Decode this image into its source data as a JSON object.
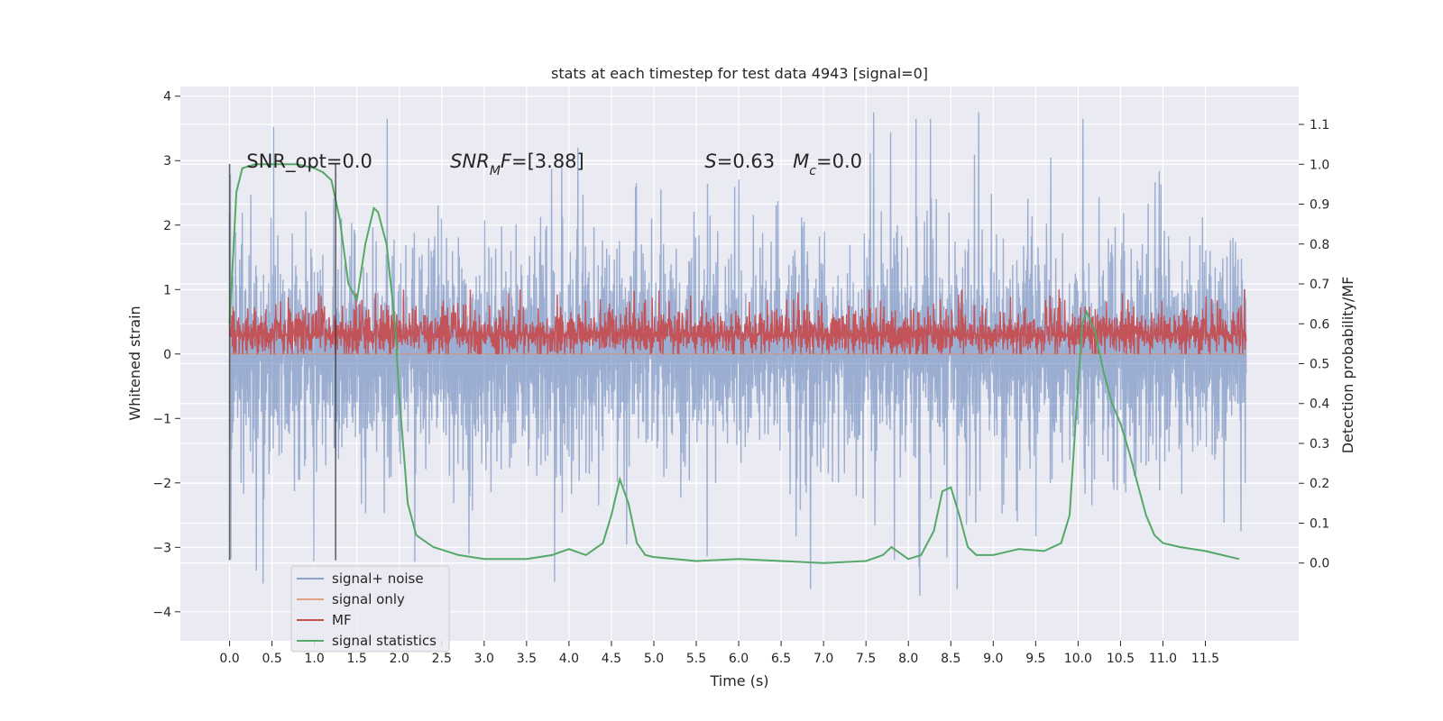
{
  "chart_data": {
    "type": "line",
    "title": "stats at each timestep for test data 4943 [signal=0]",
    "xlabel": "Time (s)",
    "ylabel": "Whitened strain",
    "y2label": "Detection probability/MF",
    "xlim": [
      -0.58,
      12.6
    ],
    "ylim": [
      -4.45,
      4.15
    ],
    "y2lim": [
      -0.195,
      1.195
    ],
    "x_ticks": [
      0.0,
      0.5,
      1.0,
      1.5,
      2.0,
      2.5,
      3.0,
      3.5,
      4.0,
      4.5,
      5.0,
      5.5,
      6.0,
      6.5,
      7.0,
      7.5,
      8.0,
      8.5,
      9.0,
      9.5,
      10.0,
      10.5,
      11.0,
      11.5
    ],
    "x_tick_labels": [
      "0.0",
      "0.5",
      "1.0",
      "1.5",
      "2.0",
      "2.5",
      "3.0",
      "3.5",
      "4.0",
      "4.5",
      "5.0",
      "5.5",
      "6.0",
      "6.5",
      "7.0",
      "7.5",
      "8.0",
      "8.5",
      "9.0",
      "9.5",
      "10.0",
      "10.5",
      "11.0",
      "11.5"
    ],
    "y_ticks": [
      -4,
      -3,
      -2,
      -1,
      0,
      1,
      2,
      3,
      4
    ],
    "y_tick_labels": [
      "−4",
      "−3",
      "−2",
      "−1",
      "0",
      "1",
      "2",
      "3",
      "4"
    ],
    "y2_ticks": [
      0.0,
      0.1,
      0.2,
      0.3,
      0.4,
      0.5,
      0.6,
      0.7,
      0.8,
      0.9,
      1.0,
      1.1
    ],
    "y2_tick_labels": [
      "0.0",
      "0.1",
      "0.2",
      "0.3",
      "0.4",
      "0.5",
      "0.6",
      "0.7",
      "0.8",
      "0.9",
      "1.0",
      "1.1"
    ],
    "grid": true,
    "legend_position": "lower-left",
    "annotations": [
      {
        "text": "SNR_opt=0.0",
        "x": 0.2,
        "y": 3.0
      },
      {
        "text": "SNR_M F=[3.88]",
        "x": 2.6,
        "y": 3.0
      },
      {
        "text": "S=0.63   M_c=0.0",
        "x": 5.6,
        "y": 3.0
      }
    ],
    "vertical_markers": [
      {
        "x": 0.0,
        "ymin": -3.2,
        "ymax": 2.95
      },
      {
        "x": 1.25,
        "ymin": -3.2,
        "ymax": 2.95
      }
    ],
    "series": [
      {
        "name": "signal+ noise",
        "color": "#4c72b0",
        "axis": "left",
        "kind": "noise",
        "x_range": [
          0.0,
          11.98
        ],
        "envelope_ymax": 3.75,
        "envelope_ymin": -3.65,
        "typical_amplitude": 1.6
      },
      {
        "name": "signal only",
        "color": "#dd8452",
        "axis": "left",
        "x": [
          0.0,
          11.98
        ],
        "y": [
          0.0,
          0.0
        ]
      },
      {
        "name": "MF",
        "color": "#c44e52",
        "axis": "left",
        "kind": "noise",
        "x_range": [
          0.0,
          11.98
        ],
        "envelope_ymax": 1.0,
        "envelope_ymin": 0.0,
        "typical_center": 0.3
      },
      {
        "name": "signal statistics",
        "color": "#55a868",
        "axis": "right",
        "x": [
          0.0,
          0.08,
          0.15,
          0.3,
          0.5,
          0.8,
          1.0,
          1.1,
          1.2,
          1.3,
          1.4,
          1.5,
          1.6,
          1.7,
          1.75,
          1.85,
          1.95,
          2.0,
          2.1,
          2.2,
          2.4,
          2.7,
          3.0,
          3.5,
          3.8,
          4.0,
          4.2,
          4.4,
          4.5,
          4.6,
          4.7,
          4.8,
          4.9,
          5.0,
          5.5,
          6.0,
          6.5,
          7.0,
          7.5,
          7.7,
          7.8,
          7.9,
          8.0,
          8.15,
          8.3,
          8.4,
          8.5,
          8.6,
          8.7,
          8.8,
          9.0,
          9.3,
          9.6,
          9.8,
          9.9,
          10.0,
          10.05,
          10.1,
          10.2,
          10.3,
          10.4,
          10.5,
          10.6,
          10.7,
          10.8,
          10.9,
          11.0,
          11.2,
          11.5,
          11.7,
          11.9
        ],
        "y": [
          0.6,
          0.93,
          0.99,
          1.0,
          1.0,
          1.0,
          0.99,
          0.98,
          0.96,
          0.86,
          0.7,
          0.66,
          0.8,
          0.89,
          0.88,
          0.8,
          0.6,
          0.42,
          0.15,
          0.07,
          0.04,
          0.02,
          0.01,
          0.01,
          0.02,
          0.035,
          0.02,
          0.05,
          0.12,
          0.21,
          0.15,
          0.05,
          0.02,
          0.015,
          0.005,
          0.01,
          0.005,
          0.0,
          0.005,
          0.02,
          0.04,
          0.025,
          0.01,
          0.02,
          0.08,
          0.18,
          0.19,
          0.12,
          0.04,
          0.02,
          0.02,
          0.035,
          0.03,
          0.05,
          0.12,
          0.45,
          0.6,
          0.63,
          0.58,
          0.48,
          0.4,
          0.35,
          0.28,
          0.2,
          0.12,
          0.07,
          0.05,
          0.04,
          0.03,
          0.02,
          0.01
        ]
      }
    ]
  }
}
